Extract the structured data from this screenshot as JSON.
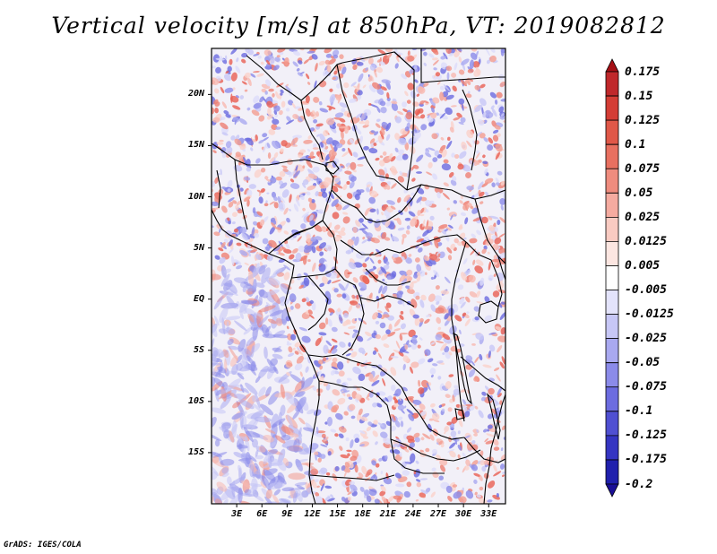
{
  "title": "Vertical velocity [m/s] at 850hPa, VT: 2019082812",
  "credit": "GrADS: IGES/COLA",
  "map": {
    "lat_labels": [
      "20N",
      "15N",
      "10N",
      "5N",
      "EQ",
      "5S",
      "10S",
      "15S"
    ],
    "lon_labels": [
      "3E",
      "6E",
      "9E",
      "12E",
      "15E",
      "18E",
      "21E",
      "24E",
      "27E",
      "30E",
      "33E"
    ],
    "lon_range": [
      0,
      35
    ],
    "lat_range": [
      -20,
      24.5
    ]
  },
  "colorbar": {
    "labels": [
      "0.175",
      "0.15",
      "0.125",
      "0.1",
      "0.075",
      "0.05",
      "0.025",
      "0.0125",
      "0.005",
      "-0.005",
      "-0.0125",
      "-0.025",
      "-0.05",
      "-0.075",
      "-0.1",
      "-0.125",
      "-0.175",
      "-0.2"
    ],
    "colors": [
      "#a50f15",
      "#c0282b",
      "#d43d35",
      "#e05848",
      "#e87060",
      "#ef8c7e",
      "#f5aba0",
      "#f9cbc2",
      "#fce6e1",
      "#ffffff",
      "#e3e3fb",
      "#c7c7f6",
      "#a9a9f0",
      "#8b8be9",
      "#6c6ce0",
      "#5050d2",
      "#3535c2",
      "#2020ad",
      "#1a0f96"
    ]
  },
  "colors": {
    "positive": "#e4473c",
    "negative": "#4747dd",
    "border": "#000000"
  }
}
